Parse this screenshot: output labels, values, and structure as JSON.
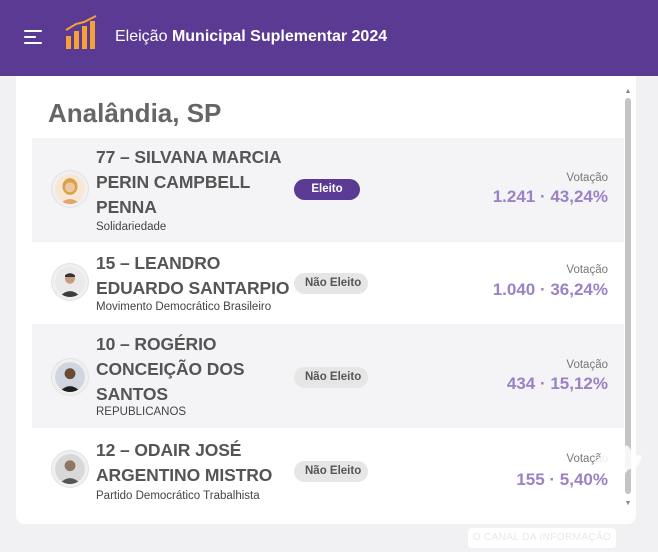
{
  "header": {
    "title_prefix": "Eleição",
    "title_bold": "Municipal Suplementar 2024",
    "menu_icon": "hamburger-menu-icon",
    "logo_icon": "bar-chart-icon",
    "bg_color": "#5b3a94",
    "logo_color": "#f4a13a"
  },
  "city": "Analândia, SP",
  "candidates": [
    {
      "name_lines": [
        "77 – SILVANA MARCIA",
        "PERIN CAMPBELL",
        "PENNA"
      ],
      "party": "Solidariedade",
      "status": "Eleito",
      "vote_label": "Votação",
      "votes": "1.241 · 43,24%"
    },
    {
      "name_lines": [
        "15 – LEANDRO",
        "EDUARDO SANTARPIO"
      ],
      "party": "Movimento Democrático Brasileiro",
      "status": "Não Eleito",
      "vote_label": "Votação",
      "votes": "1.040 · 36,24%"
    },
    {
      "name_lines": [
        "10 – ROGÉRIO",
        "CONCEIÇÃO DOS",
        "SANTOS"
      ],
      "party": "REPUBLICANOS",
      "status": "Não Eleito",
      "vote_label": "Votação",
      "votes": "434 · 15,12%"
    },
    {
      "name_lines": [
        "12 – ODAIR JOSÉ",
        "ARGENTINO MISTRO"
      ],
      "party": "Partido Democrático Trabalhista",
      "status": "Não Eleito",
      "vote_label": "Votação",
      "votes": "155 · 5,40%"
    }
  ],
  "watermark": "O CANAL DA INFORMAÇÃO",
  "accent_vote_color": "#9a82c4"
}
